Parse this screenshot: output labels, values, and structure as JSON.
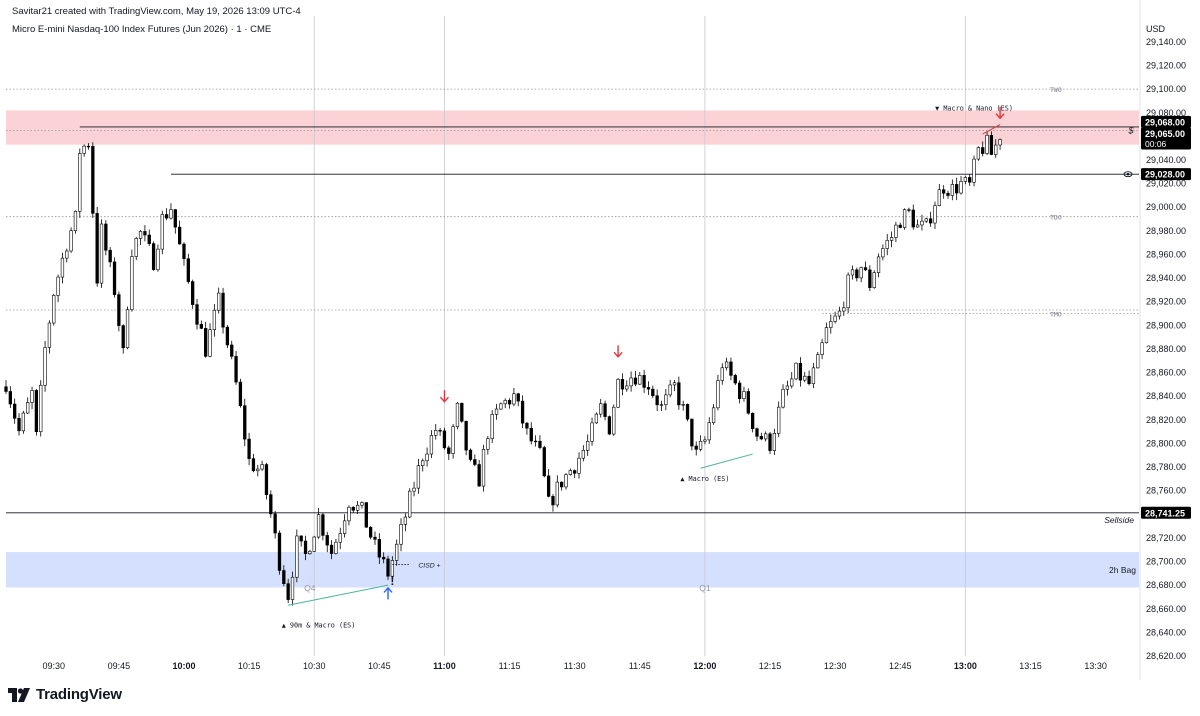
{
  "header": {
    "credit": "Savitar21 created with TradingView.com, May 19, 2026 13:09 UTC-4",
    "symbol": "Micro E-mini Nasdaq-100 Index Futures (Jun 2026) · 1 · CME"
  },
  "brand": {
    "name": "TradingView",
    "logo_icon": "tradingview-logo-icon"
  },
  "colors": {
    "up_body": "#ffffff",
    "down_body": "#000000",
    "wick": "#000000",
    "resistance_zone": "#fbd3d7",
    "support_zone": "#d4e0fd",
    "sweep_line": "#4bb39b",
    "arrow_down": "#e0383e",
    "arrow_up": "#2962ff"
  },
  "chart_data": {
    "type": "candlestick",
    "title": "Micro E-mini Nasdaq-100 Index Futures (Jun 2026) · 1 · CME",
    "timeframe_minutes": 1,
    "currency": "USD",
    "ylim": [
      28620,
      29145
    ],
    "y_ticks": [
      28620,
      28640,
      28660,
      28680,
      28700,
      28720,
      28740,
      28760,
      28780,
      28800,
      28820,
      28840,
      28860,
      28880,
      28900,
      28920,
      28940,
      28960,
      28980,
      29000,
      29020,
      29040,
      29060,
      29080,
      29100,
      29120,
      29140
    ],
    "xlim": [
      "09:19",
      "13:40"
    ],
    "x_ticks": [
      "09:30",
      "09:45",
      "10:00",
      "10:15",
      "10:30",
      "10:45",
      "11:00",
      "11:15",
      "11:30",
      "11:45",
      "12:00",
      "12:15",
      "12:30",
      "12:45",
      "13:00",
      "13:15",
      "13:30"
    ],
    "bold_ticks": [
      "10:00",
      "11:00",
      "12:00",
      "13:00"
    ],
    "grid": false,
    "anchors": [
      [
        "09:19",
        28852
      ],
      [
        "09:22",
        28810
      ],
      [
        "09:25",
        28842
      ],
      [
        "09:26",
        28805
      ],
      [
        "09:28",
        28880
      ],
      [
        "09:30",
        28928
      ],
      [
        "09:33",
        28970
      ],
      [
        "09:35",
        28990
      ],
      [
        "09:36",
        29048
      ],
      [
        "09:38",
        29055
      ],
      [
        "09:40",
        28940
      ],
      [
        "09:41",
        28980
      ],
      [
        "09:44",
        28930
      ],
      [
        "09:46",
        28875
      ],
      [
        "09:48",
        28965
      ],
      [
        "09:50",
        28978
      ],
      [
        "09:53",
        28955
      ],
      [
        "09:55",
        28990
      ],
      [
        "09:57",
        29000
      ],
      [
        "10:00",
        28950
      ],
      [
        "10:05",
        28880
      ],
      [
        "10:08",
        28920
      ],
      [
        "10:12",
        28850
      ],
      [
        "10:15",
        28785
      ],
      [
        "10:18",
        28775
      ],
      [
        "10:20",
        28740
      ],
      [
        "10:22",
        28700
      ],
      [
        "10:24",
        28672
      ],
      [
        "10:26",
        28715
      ],
      [
        "10:28",
        28705
      ],
      [
        "10:31",
        28738
      ],
      [
        "10:34",
        28708
      ],
      [
        "10:36",
        28728
      ],
      [
        "10:38",
        28752
      ],
      [
        "10:41",
        28742
      ],
      [
        "10:44",
        28712
      ],
      [
        "10:47",
        28690
      ],
      [
        "10:49",
        28712
      ],
      [
        "10:52",
        28752
      ],
      [
        "10:55",
        28790
      ],
      [
        "10:58",
        28812
      ],
      [
        "11:01",
        28790
      ],
      [
        "11:03",
        28828
      ],
      [
        "11:06",
        28780
      ],
      [
        "11:08",
        28770
      ],
      [
        "11:10",
        28810
      ],
      [
        "11:13",
        28832
      ],
      [
        "11:16",
        28840
      ],
      [
        "11:19",
        28808
      ],
      [
        "11:22",
        28790
      ],
      [
        "11:24",
        28748
      ],
      [
        "11:27",
        28768
      ],
      [
        "11:30",
        28782
      ],
      [
        "11:33",
        28800
      ],
      [
        "11:36",
        28830
      ],
      [
        "11:38",
        28814
      ],
      [
        "11:40",
        28852
      ],
      [
        "11:42",
        28856
      ],
      [
        "11:44",
        28858
      ],
      [
        "11:47",
        28850
      ],
      [
        "11:50",
        28830
      ],
      [
        "11:53",
        28848
      ],
      [
        "11:55",
        28828
      ],
      [
        "11:58",
        28790
      ],
      [
        "12:00",
        28802
      ],
      [
        "12:02",
        28832
      ],
      [
        "12:04",
        28868
      ],
      [
        "12:06",
        28856
      ],
      [
        "12:09",
        28838
      ],
      [
        "12:12",
        28808
      ],
      [
        "12:15",
        28800
      ],
      [
        "12:18",
        28840
      ],
      [
        "12:21",
        28860
      ],
      [
        "12:24",
        28850
      ],
      [
        "12:26",
        28868
      ],
      [
        "12:28",
        28895
      ],
      [
        "12:31",
        28910
      ],
      [
        "12:33",
        28935
      ],
      [
        "12:36",
        28950
      ],
      [
        "12:38",
        28935
      ],
      [
        "12:40",
        28960
      ],
      [
        "12:43",
        28975
      ],
      [
        "12:45",
        28990
      ],
      [
        "12:47",
        28995
      ],
      [
        "12:49",
        28983
      ],
      [
        "12:51",
        28983
      ],
      [
        "12:53",
        29005
      ],
      [
        "12:55",
        29018
      ],
      [
        "12:57",
        29015
      ],
      [
        "12:59",
        29020
      ],
      [
        "13:01",
        29018
      ],
      [
        "13:03",
        29048
      ],
      [
        "13:05",
        29053
      ],
      [
        "13:06",
        29045
      ],
      [
        "13:07",
        29052
      ],
      [
        "13:08",
        29062
      ]
    ],
    "horizontal_levels": [
      {
        "price": 29100,
        "label": "TWO",
        "style": "dotted",
        "from": "09:19"
      },
      {
        "price": 28992,
        "label": "TDO",
        "style": "dotted",
        "from": "09:19"
      },
      {
        "price": 28913,
        "label": "",
        "style": "dotted",
        "from": "09:19"
      },
      {
        "price": 28910,
        "label": "TMO",
        "style": "dotted",
        "from": "12:27"
      },
      {
        "price": 29065,
        "label": "",
        "style": "dotted",
        "from": "09:19"
      },
      {
        "price": 29068,
        "label": "",
        "style": "solid",
        "from": "09:36"
      },
      {
        "price": 29028,
        "label": "",
        "style": "solid",
        "from": "09:57"
      },
      {
        "price": 28741.25,
        "label": "Sellside",
        "style": "solid",
        "from": "09:19"
      }
    ],
    "zones": [
      {
        "from": 29053,
        "to": 29082,
        "label": "",
        "color": "#fbd3d7"
      },
      {
        "from": 28678,
        "to": 28708,
        "label": "2h Bag",
        "color": "#d4e0fd"
      }
    ],
    "price_labels": [
      {
        "price": 29068,
        "text": "29,068.00",
        "sub": ""
      },
      {
        "price": 29065,
        "text": "29,065.00",
        "sub": "00:06"
      },
      {
        "price": 29028,
        "text": "29,028.00",
        "sub": ""
      },
      {
        "price": 28741.25,
        "text": "28,741.25",
        "sub": ""
      }
    ],
    "annotations": [
      {
        "text": "▼ Macro & Nano (ES)",
        "time": "13:02",
        "price": 29082
      },
      {
        "text": "▲ 90m & Macro (ES)",
        "time": "10:31",
        "price": 28644
      },
      {
        "text": "▲ Macro (ES)",
        "time": "12:00",
        "price": 28768
      },
      {
        "text": "CISD +",
        "time": "10:54",
        "price": 28695
      },
      {
        "text": "Q4",
        "time": "10:29",
        "price": 28675
      },
      {
        "text": "Q1",
        "time": "12:00",
        "price": 28675
      }
    ],
    "arrows": [
      {
        "dir": "down",
        "time": "11:00",
        "price": 28840
      },
      {
        "dir": "down",
        "time": "11:40",
        "price": 28878
      },
      {
        "dir": "down",
        "time": "13:08",
        "price": 29080
      },
      {
        "dir": "up",
        "time": "10:47",
        "price": 28673
      }
    ],
    "sweep_lines": [
      {
        "from": [
          "10:24",
          28663
        ],
        "to": [
          "10:47",
          28680
        ]
      },
      {
        "from": [
          "11:59",
          28779
        ],
        "to": [
          "12:11",
          28791
        ]
      },
      {
        "from": [
          "13:04",
          29062
        ],
        "to": [
          "13:08",
          29070
        ]
      }
    ],
    "quarter_dividers": [
      "10:30",
      "11:00",
      "12:00",
      "13:00"
    ],
    "markers": [
      {
        "icon": "dollar-sign-icon",
        "price": 29065,
        "text": "$"
      },
      {
        "icon": "eye-icon",
        "price": 29028,
        "text": ""
      }
    ],
    "other_labels": [
      {
        "text": "!",
        "time": "10:48",
        "price": 28680
      }
    ]
  }
}
